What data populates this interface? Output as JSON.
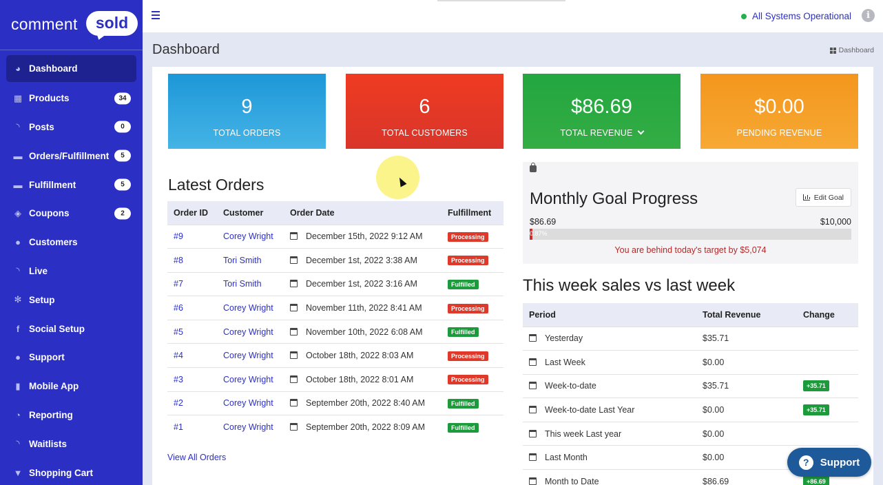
{
  "brand": {
    "logo_left": "comment",
    "logo_right": "sold"
  },
  "sidebar": {
    "items": [
      {
        "label": "Dashboard",
        "icon": "dashboard-icon",
        "glyph": "◕",
        "badge": ""
      },
      {
        "label": "Products",
        "icon": "products-icon",
        "glyph": "▦",
        "badge": "34"
      },
      {
        "label": "Posts",
        "icon": "rss-icon",
        "glyph": "◝",
        "badge": "0"
      },
      {
        "label": "Orders/Fulfillment",
        "icon": "truck-icon",
        "glyph": "▬",
        "badge": "5"
      },
      {
        "label": "Fulfillment",
        "icon": "truck-icon",
        "glyph": "▬",
        "badge": "5"
      },
      {
        "label": "Coupons",
        "icon": "tag-icon",
        "glyph": "◈",
        "badge": "2"
      },
      {
        "label": "Customers",
        "icon": "user-icon",
        "glyph": "●",
        "badge": ""
      },
      {
        "label": "Live",
        "icon": "rss-icon",
        "glyph": "◝",
        "badge": ""
      },
      {
        "label": "Setup",
        "icon": "gear-icon",
        "glyph": "✻",
        "badge": ""
      },
      {
        "label": "Social Setup",
        "icon": "facebook-icon",
        "glyph": "f",
        "badge": ""
      },
      {
        "label": "Support",
        "icon": "chat-icon",
        "glyph": "●",
        "badge": ""
      },
      {
        "label": "Mobile App",
        "icon": "mobile-icon",
        "glyph": "▮",
        "badge": ""
      },
      {
        "label": "Reporting",
        "icon": "pie-chart-icon",
        "glyph": "◔",
        "badge": ""
      },
      {
        "label": "Waitlists",
        "icon": "rss-icon",
        "glyph": "◝",
        "badge": ""
      },
      {
        "label": "Shopping Cart",
        "icon": "cart-icon",
        "glyph": "▼",
        "badge": ""
      }
    ]
  },
  "topbar": {
    "status": "All Systems Operational",
    "status_color": "#22b14c"
  },
  "header": {
    "title": "Dashboard",
    "breadcrumb": "Dashboard"
  },
  "stats": [
    {
      "value": "9",
      "label": "TOTAL ORDERS",
      "color": "#1d97d8"
    },
    {
      "value": "6",
      "label": "TOTAL CUSTOMERS",
      "color": "#ef3b22"
    },
    {
      "value": "$86.69",
      "label": "TOTAL REVENUE",
      "color": "#23a640"
    },
    {
      "value": "$0.00",
      "label": "PENDING REVENUE",
      "color": "#f4961d"
    }
  ],
  "latest_orders": {
    "title": "Latest Orders",
    "columns": [
      "Order ID",
      "Customer",
      "Order Date",
      "Fulfillment"
    ],
    "rows": [
      {
        "id": "#9",
        "customer": "Corey Wright",
        "date": "December 15th, 2022 9:12 AM",
        "status": "Processing"
      },
      {
        "id": "#8",
        "customer": "Tori Smith",
        "date": "December 1st, 2022 3:38 AM",
        "status": "Processing"
      },
      {
        "id": "#7",
        "customer": "Tori Smith",
        "date": "December 1st, 2022 3:16 AM",
        "status": "Fulfilled"
      },
      {
        "id": "#6",
        "customer": "Corey Wright",
        "date": "November 11th, 2022 8:41 AM",
        "status": "Processing"
      },
      {
        "id": "#5",
        "customer": "Corey Wright",
        "date": "November 10th, 2022 6:08 AM",
        "status": "Fulfilled"
      },
      {
        "id": "#4",
        "customer": "Corey Wright",
        "date": "October 18th, 2022 8:03 AM",
        "status": "Processing"
      },
      {
        "id": "#3",
        "customer": "Corey Wright",
        "date": "October 18th, 2022 8:01 AM",
        "status": "Processing"
      },
      {
        "id": "#2",
        "customer": "Corey Wright",
        "date": "September 20th, 2022 8:40 AM",
        "status": "Fulfilled"
      },
      {
        "id": "#1",
        "customer": "Corey Wright",
        "date": "September 20th, 2022 8:09 AM",
        "status": "Fulfilled"
      }
    ],
    "view_all": "View All Orders"
  },
  "goal": {
    "title": "Monthly Goal Progress",
    "edit_label": "Edit Goal",
    "current": "$86.69",
    "target": "$10,000",
    "progress_pct": 0.87,
    "progress_text": "0.87%",
    "message": "You are behind today's target by $5,074"
  },
  "sales": {
    "title": "This week sales vs last week",
    "columns": [
      "Period",
      "Total Revenue",
      "Change"
    ],
    "rows": [
      {
        "period": "Yesterday",
        "revenue": "$35.71",
        "change": ""
      },
      {
        "period": "Last Week",
        "revenue": "$0.00",
        "change": ""
      },
      {
        "period": "Week-to-date",
        "revenue": "$35.71",
        "change": "+35.71"
      },
      {
        "period": "Week-to-date Last Year",
        "revenue": "$0.00",
        "change": "+35.71"
      },
      {
        "period": "This week Last year",
        "revenue": "$0.00",
        "change": ""
      },
      {
        "period": "Last Month",
        "revenue": "$0.00",
        "change": ""
      },
      {
        "period": "Month to Date",
        "revenue": "$86.69",
        "change": "+86.69"
      }
    ]
  },
  "support_button": {
    "label": "Support"
  }
}
